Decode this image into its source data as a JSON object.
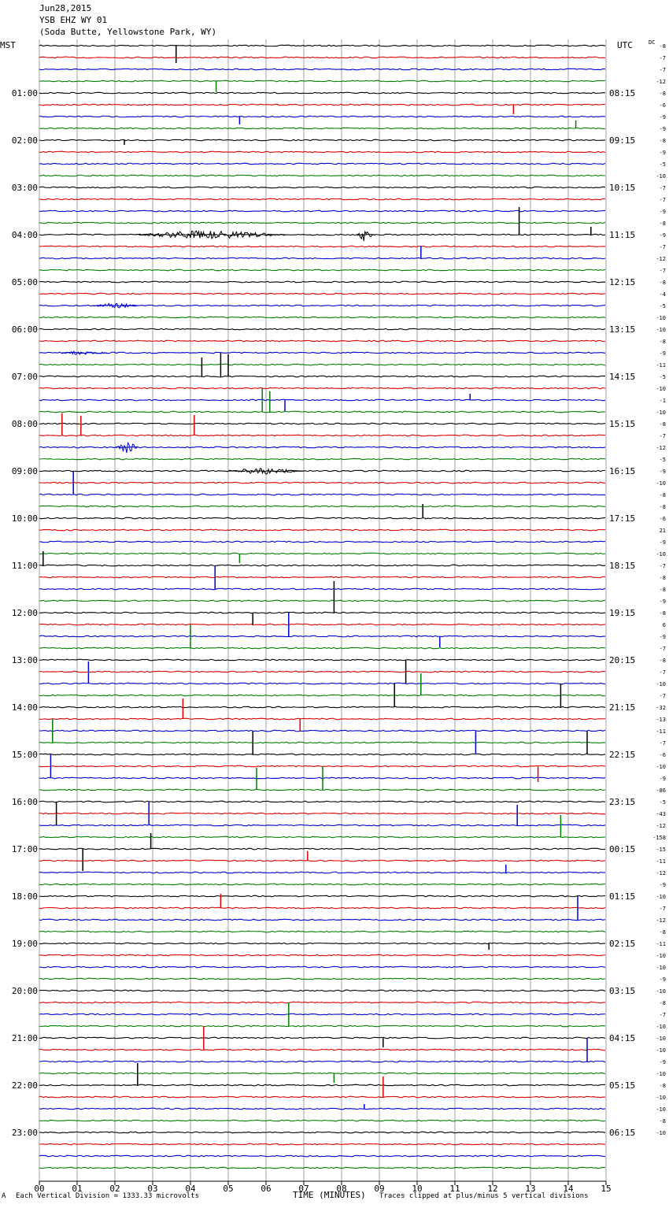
{
  "header": {
    "date": "Jun28,2015",
    "station": "YSB EHZ WY 01",
    "location": "(Soda Butte, Yellowstone Park, WY)"
  },
  "axis_labels": {
    "left_tz": "MST",
    "right_tz": "UTC",
    "right_top": "DC",
    "x_title": "TIME (MINUTES)"
  },
  "footer": {
    "left_mark": "A",
    "scale_note": "Each Vertical Division = 1333.33 microvolts",
    "clip_note": "Traces clipped at plus/minus 5 vertical divisions"
  },
  "colors": {
    "trace_cycle": [
      "#000000",
      "#e00000",
      "#0000d0",
      "#008000"
    ],
    "grid": "#a0a0a0"
  },
  "chart_data": {
    "type": "line",
    "title": "YSB EHZ WY 01",
    "xlabel": "TIME (MINUTES)",
    "ylabel": "",
    "x_range": [
      0,
      15
    ],
    "x_ticks": [
      "00",
      "01",
      "02",
      "03",
      "04",
      "05",
      "06",
      "07",
      "08",
      "09",
      "10",
      "11",
      "12",
      "13",
      "14",
      "15"
    ],
    "trace_count": 96,
    "left_time_labels": [
      "01:00",
      "02:00",
      "03:00",
      "04:00",
      "05:00",
      "06:00",
      "07:00",
      "08:00",
      "09:00",
      "10:00",
      "11:00",
      "12:00",
      "13:00",
      "14:00",
      "15:00",
      "16:00",
      "17:00",
      "18:00",
      "19:00",
      "20:00",
      "21:00",
      "22:00",
      "23:00"
    ],
    "right_time_labels": [
      "08:15",
      "09:15",
      "10:15",
      "11:15",
      "12:15",
      "13:15",
      "14:15",
      "15:15",
      "16:15",
      "17:15",
      "18:15",
      "19:15",
      "20:15",
      "21:15",
      "22:15",
      "23:15",
      "00:15",
      "01:15",
      "02:15",
      "03:15",
      "04:15",
      "05:15",
      "06:15"
    ],
    "dc_offsets": [
      "-8",
      "-7",
      "-7",
      "-12",
      "-8",
      "-6",
      "-9",
      "-9",
      "-8",
      "-9",
      "-5",
      "-10",
      "-7",
      "-7",
      "-9",
      "-8",
      "-9",
      "-7",
      "-12",
      "-7",
      "-8",
      "-4",
      "-5",
      "-10",
      "-10",
      "-8",
      "-9",
      "-11",
      "-5",
      "-10",
      "-1",
      "-10",
      "-8",
      "-7",
      "-12",
      "-5",
      "-9",
      "-10",
      "-8",
      "-8",
      "-6",
      "21",
      "-9",
      "-10",
      "-7",
      "-8",
      "-8",
      "-9",
      "-8",
      "6",
      "-9",
      "-7",
      "-8",
      "-7",
      "-10",
      "-7",
      "-32",
      "-13",
      "-11",
      "-7",
      "-6",
      "-10",
      "-9",
      "-86",
      "-5",
      "-43",
      "-12",
      "-158",
      "-15",
      "-11",
      "-12",
      "-9",
      "-10",
      "-7",
      "-12",
      "-8",
      "-11",
      "-10",
      "-10",
      "-9",
      "-10",
      "-8",
      "-7",
      "-10",
      "-10",
      "-10",
      "-9",
      "-10",
      "-8",
      "-10",
      "-10",
      "-8",
      "-10"
    ],
    "events": [
      {
        "trace": 0,
        "minute": 3.62,
        "amp": -22
      },
      {
        "trace": 3,
        "minute": 4.68,
        "amp": -14
      },
      {
        "trace": 5,
        "minute": 12.55,
        "amp": -12
      },
      {
        "trace": 6,
        "minute": 5.3,
        "amp": -10
      },
      {
        "trace": 7,
        "minute": 14.2,
        "amp": 10
      },
      {
        "trace": 8,
        "minute": 2.25,
        "amp": -6
      },
      {
        "trace": 16,
        "minute": 2.5,
        "amp": 5,
        "burst": 4.0
      },
      {
        "trace": 16,
        "minute": 8.4,
        "amp": 12,
        "burst": 0.5
      },
      {
        "trace": 16,
        "minute": 12.7,
        "amp": 35
      },
      {
        "trace": 16,
        "minute": 14.6,
        "amp": 10
      },
      {
        "trace": 18,
        "minute": 10.1,
        "amp": 16
      },
      {
        "trace": 22,
        "minute": 1.4,
        "amp": 3,
        "burst": 1.2
      },
      {
        "trace": 26,
        "minute": 0.6,
        "amp": 3,
        "burst": 1.2
      },
      {
        "trace": 28,
        "minute": 4.8,
        "amp": 30
      },
      {
        "trace": 28,
        "minute": 5.0,
        "amp": 28
      },
      {
        "trace": 28,
        "minute": 4.3,
        "amp": 24
      },
      {
        "trace": 30,
        "minute": 6.5,
        "amp": -14
      },
      {
        "trace": 30,
        "minute": 11.4,
        "amp": 8
      },
      {
        "trace": 31,
        "minute": 5.9,
        "amp": 30
      },
      {
        "trace": 31,
        "minute": 6.1,
        "amp": 26
      },
      {
        "trace": 33,
        "minute": 0.6,
        "amp": 28
      },
      {
        "trace": 33,
        "minute": 1.1,
        "amp": 25
      },
      {
        "trace": 33,
        "minute": 4.1,
        "amp": 26
      },
      {
        "trace": 34,
        "minute": 2.0,
        "amp": 8,
        "burst": 0.6
      },
      {
        "trace": 36,
        "minute": 5.0,
        "amp": 4,
        "burst": 2.0
      },
      {
        "trace": 38,
        "minute": 0.9,
        "amp": 30
      },
      {
        "trace": 40,
        "minute": 10.15,
        "amp": 18
      },
      {
        "trace": 43,
        "minute": 5.3,
        "amp": -12
      },
      {
        "trace": 44,
        "minute": 0.1,
        "amp": 18
      },
      {
        "trace": 46,
        "minute": 4.65,
        "amp": 30
      },
      {
        "trace": 48,
        "minute": 5.65,
        "amp": -16
      },
      {
        "trace": 48,
        "minute": 7.8,
        "amp": 40
      },
      {
        "trace": 50,
        "minute": 6.6,
        "amp": 30
      },
      {
        "trace": 50,
        "minute": 10.6,
        "amp": -14
      },
      {
        "trace": 51,
        "minute": 4.0,
        "amp": 30
      },
      {
        "trace": 52,
        "minute": 9.7,
        "amp": -30
      },
      {
        "trace": 54,
        "minute": 1.3,
        "amp": 28
      },
      {
        "trace": 55,
        "minute": 10.1,
        "amp": 28
      },
      {
        "trace": 56,
        "minute": 9.4,
        "amp": 30
      },
      {
        "trace": 56,
        "minute": 13.8,
        "amp": 30
      },
      {
        "trace": 57,
        "minute": 3.8,
        "amp": 26
      },
      {
        "trace": 57,
        "minute": 6.9,
        "amp": -16
      },
      {
        "trace": 58,
        "minute": 11.55,
        "amp": -30
      },
      {
        "trace": 59,
        "minute": 0.35,
        "amp": 30
      },
      {
        "trace": 60,
        "minute": 5.65,
        "amp": 30
      },
      {
        "trace": 60,
        "minute": 14.5,
        "amp": 30
      },
      {
        "trace": 61,
        "minute": 13.2,
        "amp": -20
      },
      {
        "trace": 62,
        "minute": 0.3,
        "amp": 30
      },
      {
        "trace": 63,
        "minute": 5.75,
        "amp": 28
      },
      {
        "trace": 63,
        "minute": 7.5,
        "amp": 30
      },
      {
        "trace": 64,
        "minute": 0.45,
        "amp": -30
      },
      {
        "trace": 66,
        "minute": 2.9,
        "amp": 30
      },
      {
        "trace": 66,
        "minute": 12.65,
        "amp": 26
      },
      {
        "trace": 67,
        "minute": 13.8,
        "amp": 28
      },
      {
        "trace": 68,
        "minute": 1.15,
        "amp": -28
      },
      {
        "trace": 68,
        "minute": 2.95,
        "amp": 20
      },
      {
        "trace": 69,
        "minute": 7.1,
        "amp": 12
      },
      {
        "trace": 70,
        "minute": 12.35,
        "amp": 10
      },
      {
        "trace": 73,
        "minute": 4.8,
        "amp": 18
      },
      {
        "trace": 74,
        "minute": 14.25,
        "amp": 30
      },
      {
        "trace": 76,
        "minute": 11.9,
        "amp": -8
      },
      {
        "trace": 83,
        "minute": 6.6,
        "amp": 30
      },
      {
        "trace": 84,
        "minute": 9.1,
        "amp": -12
      },
      {
        "trace": 85,
        "minute": 4.35,
        "amp": 30
      },
      {
        "trace": 86,
        "minute": 14.5,
        "amp": 30
      },
      {
        "trace": 87,
        "minute": 7.8,
        "amp": -12
      },
      {
        "trace": 88,
        "minute": 2.6,
        "amp": 28
      },
      {
        "trace": 89,
        "minute": 9.1,
        "amp": 26
      },
      {
        "trace": 90,
        "minute": 8.6,
        "amp": 6
      }
    ]
  }
}
